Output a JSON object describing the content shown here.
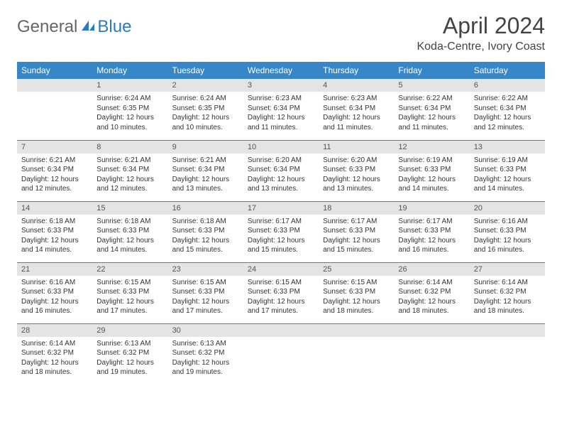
{
  "brand": {
    "part1": "General",
    "part2": "Blue"
  },
  "title": "April 2024",
  "location": "Koda-Centre, Ivory Coast",
  "colors": {
    "header_bg": "#3787c8",
    "header_text": "#ffffff",
    "daynum_bg": "#e4e4e4",
    "rule": "#3787c8",
    "brand_blue": "#2b7bbf",
    "brand_gray": "#666666",
    "body_text": "#333333",
    "page_bg": "#ffffff"
  },
  "typography": {
    "title_size_pt": 24,
    "location_size_pt": 12,
    "header_size_pt": 9,
    "cell_size_pt": 7.5
  },
  "dayNames": [
    "Sunday",
    "Monday",
    "Tuesday",
    "Wednesday",
    "Thursday",
    "Friday",
    "Saturday"
  ],
  "labels": {
    "sunrise": "Sunrise:",
    "sunset": "Sunset:",
    "daylight": "Daylight:"
  },
  "startWeekday": 1,
  "daysInMonth": 30,
  "days": {
    "1": {
      "sunrise": "6:24 AM",
      "sunset": "6:35 PM",
      "daylight": "12 hours and 10 minutes."
    },
    "2": {
      "sunrise": "6:24 AM",
      "sunset": "6:35 PM",
      "daylight": "12 hours and 10 minutes."
    },
    "3": {
      "sunrise": "6:23 AM",
      "sunset": "6:34 PM",
      "daylight": "12 hours and 11 minutes."
    },
    "4": {
      "sunrise": "6:23 AM",
      "sunset": "6:34 PM",
      "daylight": "12 hours and 11 minutes."
    },
    "5": {
      "sunrise": "6:22 AM",
      "sunset": "6:34 PM",
      "daylight": "12 hours and 11 minutes."
    },
    "6": {
      "sunrise": "6:22 AM",
      "sunset": "6:34 PM",
      "daylight": "12 hours and 12 minutes."
    },
    "7": {
      "sunrise": "6:21 AM",
      "sunset": "6:34 PM",
      "daylight": "12 hours and 12 minutes."
    },
    "8": {
      "sunrise": "6:21 AM",
      "sunset": "6:34 PM",
      "daylight": "12 hours and 12 minutes."
    },
    "9": {
      "sunrise": "6:21 AM",
      "sunset": "6:34 PM",
      "daylight": "12 hours and 13 minutes."
    },
    "10": {
      "sunrise": "6:20 AM",
      "sunset": "6:34 PM",
      "daylight": "12 hours and 13 minutes."
    },
    "11": {
      "sunrise": "6:20 AM",
      "sunset": "6:33 PM",
      "daylight": "12 hours and 13 minutes."
    },
    "12": {
      "sunrise": "6:19 AM",
      "sunset": "6:33 PM",
      "daylight": "12 hours and 14 minutes."
    },
    "13": {
      "sunrise": "6:19 AM",
      "sunset": "6:33 PM",
      "daylight": "12 hours and 14 minutes."
    },
    "14": {
      "sunrise": "6:18 AM",
      "sunset": "6:33 PM",
      "daylight": "12 hours and 14 minutes."
    },
    "15": {
      "sunrise": "6:18 AM",
      "sunset": "6:33 PM",
      "daylight": "12 hours and 14 minutes."
    },
    "16": {
      "sunrise": "6:18 AM",
      "sunset": "6:33 PM",
      "daylight": "12 hours and 15 minutes."
    },
    "17": {
      "sunrise": "6:17 AM",
      "sunset": "6:33 PM",
      "daylight": "12 hours and 15 minutes."
    },
    "18": {
      "sunrise": "6:17 AM",
      "sunset": "6:33 PM",
      "daylight": "12 hours and 15 minutes."
    },
    "19": {
      "sunrise": "6:17 AM",
      "sunset": "6:33 PM",
      "daylight": "12 hours and 16 minutes."
    },
    "20": {
      "sunrise": "6:16 AM",
      "sunset": "6:33 PM",
      "daylight": "12 hours and 16 minutes."
    },
    "21": {
      "sunrise": "6:16 AM",
      "sunset": "6:33 PM",
      "daylight": "12 hours and 16 minutes."
    },
    "22": {
      "sunrise": "6:15 AM",
      "sunset": "6:33 PM",
      "daylight": "12 hours and 17 minutes."
    },
    "23": {
      "sunrise": "6:15 AM",
      "sunset": "6:33 PM",
      "daylight": "12 hours and 17 minutes."
    },
    "24": {
      "sunrise": "6:15 AM",
      "sunset": "6:33 PM",
      "daylight": "12 hours and 17 minutes."
    },
    "25": {
      "sunrise": "6:15 AM",
      "sunset": "6:33 PM",
      "daylight": "12 hours and 18 minutes."
    },
    "26": {
      "sunrise": "6:14 AM",
      "sunset": "6:32 PM",
      "daylight": "12 hours and 18 minutes."
    },
    "27": {
      "sunrise": "6:14 AM",
      "sunset": "6:32 PM",
      "daylight": "12 hours and 18 minutes."
    },
    "28": {
      "sunrise": "6:14 AM",
      "sunset": "6:32 PM",
      "daylight": "12 hours and 18 minutes."
    },
    "29": {
      "sunrise": "6:13 AM",
      "sunset": "6:32 PM",
      "daylight": "12 hours and 19 minutes."
    },
    "30": {
      "sunrise": "6:13 AM",
      "sunset": "6:32 PM",
      "daylight": "12 hours and 19 minutes."
    }
  }
}
